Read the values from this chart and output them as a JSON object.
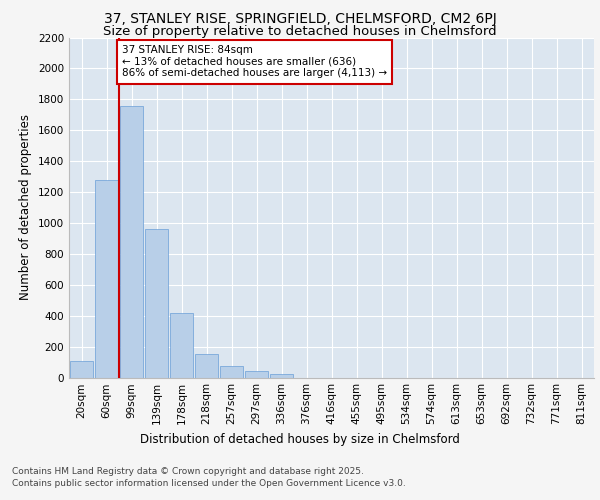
{
  "title_line1": "37, STANLEY RISE, SPRINGFIELD, CHELMSFORD, CM2 6PJ",
  "title_line2": "Size of property relative to detached houses in Chelmsford",
  "xlabel": "Distribution of detached houses by size in Chelmsford",
  "ylabel": "Number of detached properties",
  "bar_labels": [
    "20sqm",
    "60sqm",
    "99sqm",
    "139sqm",
    "178sqm",
    "218sqm",
    "257sqm",
    "297sqm",
    "336sqm",
    "376sqm",
    "416sqm",
    "455sqm",
    "495sqm",
    "534sqm",
    "574sqm",
    "613sqm",
    "653sqm",
    "692sqm",
    "732sqm",
    "771sqm",
    "811sqm"
  ],
  "bar_values": [
    110,
    1280,
    1760,
    960,
    420,
    155,
    75,
    40,
    20,
    0,
    0,
    0,
    0,
    0,
    0,
    0,
    0,
    0,
    0,
    0,
    0
  ],
  "bar_color": "#b8cfe8",
  "bar_edgecolor": "#6a9fd8",
  "property_line_x": 1.5,
  "annotation_text": "37 STANLEY RISE: 84sqm\n← 13% of detached houses are smaller (636)\n86% of semi-detached houses are larger (4,113) →",
  "annotation_box_color": "#ffffff",
  "annotation_box_edgecolor": "#cc0000",
  "vline_color": "#cc0000",
  "ylim": [
    0,
    2200
  ],
  "yticks": [
    0,
    200,
    400,
    600,
    800,
    1000,
    1200,
    1400,
    1600,
    1800,
    2000,
    2200
  ],
  "background_color": "#dce6f0",
  "grid_color": "#ffffff",
  "footer_line1": "Contains HM Land Registry data © Crown copyright and database right 2025.",
  "footer_line2": "Contains public sector information licensed under the Open Government Licence v3.0.",
  "title_fontsize": 10,
  "subtitle_fontsize": 9.5,
  "axis_label_fontsize": 8.5,
  "tick_fontsize": 7.5,
  "annotation_fontsize": 7.5,
  "footer_fontsize": 6.5,
  "fig_background": "#f5f5f5"
}
